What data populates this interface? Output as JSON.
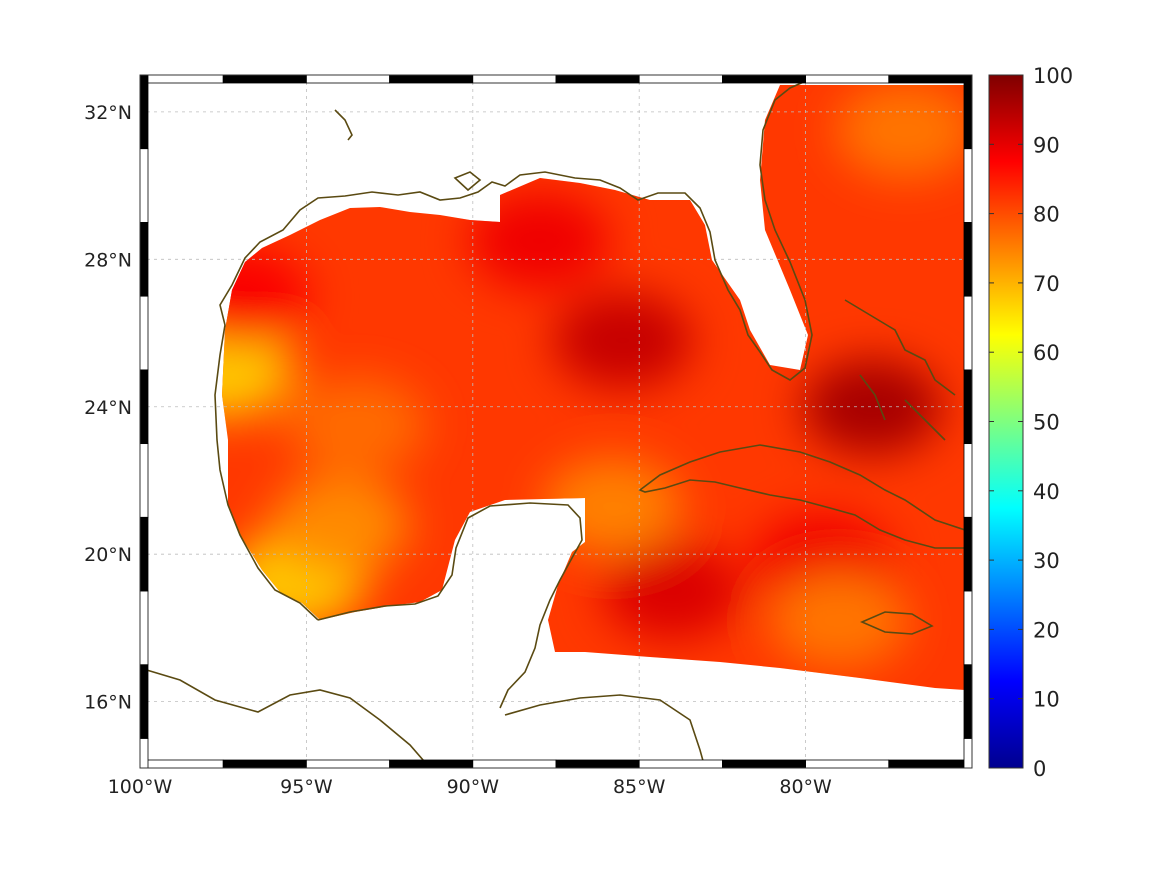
{
  "map": {
    "region": "Gulf of Mexico & western Caribbean",
    "lon_range": [
      -100,
      -75
    ],
    "lat_range": [
      14.2,
      33
    ],
    "longitude_ticks": [
      {
        "value": -100,
        "label": "100°W"
      },
      {
        "value": -95,
        "label": "95°W"
      },
      {
        "value": -90,
        "label": "90°W"
      },
      {
        "value": -85,
        "label": "85°W"
      },
      {
        "value": -80,
        "label": "80°W"
      }
    ],
    "latitude_ticks": [
      {
        "value": 32,
        "label": "32°N"
      },
      {
        "value": 28,
        "label": "28°N"
      },
      {
        "value": 24,
        "label": "24°N"
      },
      {
        "value": 20,
        "label": "20°N"
      },
      {
        "value": 16,
        "label": "16°N"
      }
    ],
    "gridlines": true,
    "coastline_color": "#5a4a12",
    "frame_style": "alternating black-white border"
  },
  "colorbar": {
    "min": 0,
    "max": 100,
    "colormap": "jet",
    "ticks": [
      {
        "value": 100,
        "label": "100"
      },
      {
        "value": 90,
        "label": "90"
      },
      {
        "value": 80,
        "label": "80"
      },
      {
        "value": 70,
        "label": "70"
      },
      {
        "value": 60,
        "label": "60"
      },
      {
        "value": 50,
        "label": "50"
      },
      {
        "value": 40,
        "label": "40"
      },
      {
        "value": 30,
        "label": "30"
      },
      {
        "value": 20,
        "label": "20"
      },
      {
        "value": 10,
        "label": "10"
      },
      {
        "value": 0,
        "label": "0"
      }
    ]
  },
  "field": {
    "background_value": 82,
    "features": [
      {
        "lon": -97.5,
        "lat": 25.0,
        "value": 68
      },
      {
        "lon": -95.3,
        "lat": 19.3,
        "value": 68
      },
      {
        "lon": -94.0,
        "lat": 20.8,
        "value": 74
      },
      {
        "lon": -93.5,
        "lat": 23.5,
        "value": 77
      },
      {
        "lon": -85.5,
        "lat": 25.8,
        "value": 93
      },
      {
        "lon": -88.0,
        "lat": 28.5,
        "value": 89
      },
      {
        "lon": -78.0,
        "lat": 24.0,
        "value": 96
      },
      {
        "lon": -84.0,
        "lat": 19.0,
        "value": 91
      },
      {
        "lon": -79.5,
        "lat": 19.8,
        "value": 89
      },
      {
        "lon": -85.8,
        "lat": 21.3,
        "value": 75
      },
      {
        "lon": -79.0,
        "lat": 18.2,
        "value": 76
      },
      {
        "lon": -77.0,
        "lat": 31.5,
        "value": 76
      },
      {
        "lon": -97.0,
        "lat": 27.0,
        "value": 88
      }
    ]
  }
}
